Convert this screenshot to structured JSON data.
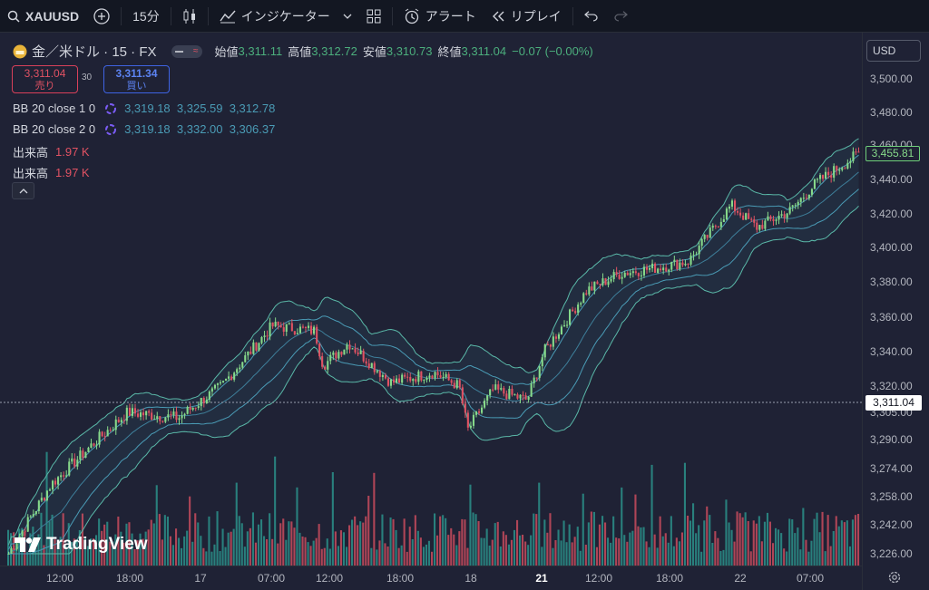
{
  "toolbar": {
    "symbol": "XAUUSD",
    "interval": "15分",
    "indicators_label": "インジケーター",
    "alert_label": "アラート",
    "replay_label": "リプレイ"
  },
  "legend": {
    "title": "金／米ドル · 15 · FX",
    "open_label": "始値",
    "open_value": "3,311.11",
    "high_label": "高値",
    "high_value": "3,312.72",
    "low_label": "安値",
    "low_value": "3,310.73",
    "close_label": "終値",
    "close_value": "3,311.04",
    "change": "−0.07 (−0.00%)"
  },
  "trade": {
    "sell_price": "3,311.04",
    "sell_label": "売り",
    "spread": "30",
    "buy_price": "3,311.34",
    "buy_label": "買い"
  },
  "indicators": [
    {
      "name": "BB 20 close 1 0",
      "values": "3,319.18  3,325.59  3,312.78"
    },
    {
      "name": "BB 20 close 2 0",
      "values": "3,319.18  3,332.00  3,306.37"
    },
    {
      "name": "出来高",
      "values": "1.97 K"
    },
    {
      "name": "出来高",
      "values": "1.97 K"
    }
  ],
  "currency": "USD",
  "logo_text": "TradingView",
  "price_axis": {
    "ticks": [
      "3,500.00",
      "3,480.00",
      "3,460.00",
      "3,440.00",
      "3,420.00",
      "3,400.00",
      "3,380.00",
      "3,360.00",
      "3,340.00",
      "3,320.00",
      "3,305.00",
      "3,290.00",
      "3,274.00",
      "3,258.00",
      "3,242.00",
      "3,226.00"
    ],
    "last_price": "3,455.81",
    "current_price": "3,311.04"
  },
  "time_axis": {
    "ticks": [
      "12:00",
      "18:00",
      "17",
      "07:00",
      "12:00",
      "18:00",
      "18",
      "21",
      "12:00",
      "18:00",
      "22",
      "07:00"
    ]
  },
  "colors": {
    "up": "#86d98a",
    "down": "#e05263",
    "bb1": "#4a9bb5",
    "bb2": "#5ab8a8"
  },
  "chart_data": {
    "type": "candlestick",
    "series": [
      {
        "name": "XAUUSD",
        "points": [
          {
            "t": 0,
            "c": 3226
          },
          {
            "t": 0.05,
            "c": 3265
          },
          {
            "t": 0.1,
            "c": 3288
          },
          {
            "t": 0.14,
            "c": 3305
          },
          {
            "t": 0.2,
            "c": 3302
          },
          {
            "t": 0.25,
            "c": 3320
          },
          {
            "t": 0.31,
            "c": 3355
          },
          {
            "t": 0.36,
            "c": 3352
          },
          {
            "t": 0.37,
            "c": 3332
          },
          {
            "t": 0.4,
            "c": 3345
          },
          {
            "t": 0.45,
            "c": 3322
          },
          {
            "t": 0.5,
            "c": 3328
          },
          {
            "t": 0.53,
            "c": 3320
          },
          {
            "t": 0.54,
            "c": 3295
          },
          {
            "t": 0.57,
            "c": 3318
          },
          {
            "t": 0.61,
            "c": 3312
          },
          {
            "t": 0.63,
            "c": 3340
          },
          {
            "t": 0.68,
            "c": 3375
          },
          {
            "t": 0.72,
            "c": 3385
          },
          {
            "t": 0.76,
            "c": 3388
          },
          {
            "t": 0.8,
            "c": 3392
          },
          {
            "t": 0.85,
            "c": 3425
          },
          {
            "t": 0.88,
            "c": 3412
          },
          {
            "t": 0.92,
            "c": 3422
          },
          {
            "t": 0.95,
            "c": 3438
          },
          {
            "t": 1.0,
            "c": 3455
          }
        ]
      }
    ]
  }
}
